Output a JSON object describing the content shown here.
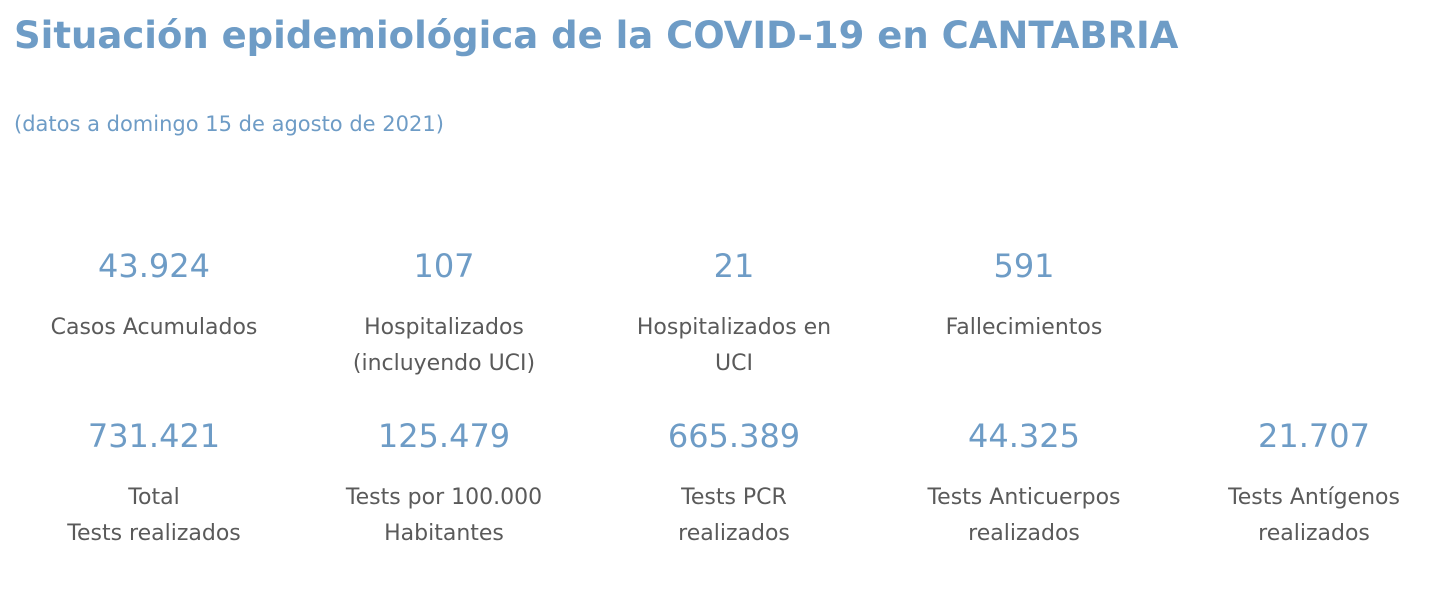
{
  "header": {
    "title": "Situación epidemiológica de la COVID-19 en CANTABRIA",
    "subtitle": "(datos a domingo 15 de agosto de 2021)"
  },
  "stats_row1": [
    {
      "value": "43.924",
      "label": "Casos Acumulados"
    },
    {
      "value": "107",
      "label": "Hospitalizados\n(incluyendo UCI)"
    },
    {
      "value": "21",
      "label": "Hospitalizados en\nUCI"
    },
    {
      "value": "591",
      "label": "Fallecimientos"
    }
  ],
  "stats_row2": [
    {
      "value": "731.421",
      "label": "Total\nTests realizados"
    },
    {
      "value": "125.479",
      "label": "Tests por 100.000\nHabitantes"
    },
    {
      "value": "665.389",
      "label": "Tests PCR\nrealizados"
    },
    {
      "value": "44.325",
      "label": "Tests Anticuerpos\nrealizados"
    },
    {
      "value": "21.707",
      "label": "Tests Antígenos\nrealizados"
    }
  ],
  "colors": {
    "accent": "#6e9cc6",
    "label_text": "#5a5a5a"
  }
}
